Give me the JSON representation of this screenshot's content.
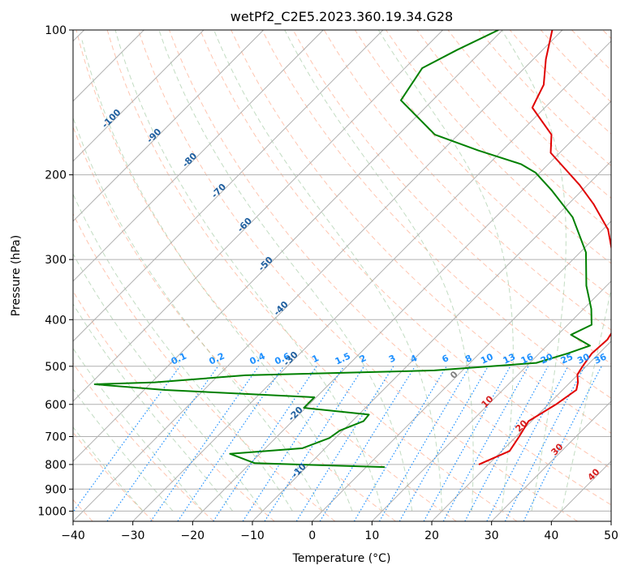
{
  "chart_data": {
    "type": "line",
    "title": "wetPf2_C2E5.2023.360.19.34.G28",
    "xlabel": "Temperature (°C)",
    "ylabel": "Pressure (hPa)",
    "xlim": [
      -40,
      50
    ],
    "ylim": [
      1050,
      100
    ],
    "y_scale": "log",
    "grid": true,
    "x_ticks": [
      "−40",
      "−30",
      "−20",
      "−10",
      "0",
      "10",
      "20",
      "30",
      "40",
      "50"
    ],
    "y_ticks": [
      "100",
      "200",
      "300",
      "400",
      "500",
      "600",
      "700",
      "800",
      "900",
      "1000"
    ],
    "colors": {
      "temperature": "#e00000",
      "dewpoint": "#008000",
      "isotherm_label": "#1f5f9f",
      "mixing_ratio": "#1e90ff",
      "dry_adiabat": "#ff7f50",
      "moist_adiabat": "#90c090",
      "grid": "#b0b0b0",
      "dry_adiabat_label": "#d62020",
      "zero_label": "#808080"
    },
    "isotherm_labels": [
      "-100",
      "-90",
      "-80",
      "-70",
      "-60",
      "-50",
      "-40",
      "-30",
      "-20",
      "-10"
    ],
    "mixing_ratio_labels": [
      "0.1",
      "0.2",
      "0.4",
      "0.6",
      "1",
      "1.5",
      "2",
      "3",
      "4",
      "6",
      "8",
      "10",
      "13",
      "16",
      "20",
      "25",
      "30",
      "36"
    ],
    "adiabat_labels": [
      "0",
      "10",
      "20",
      "30",
      "40"
    ],
    "series": [
      {
        "points": [
          [
            18.4,
            800
          ],
          [
            21.3,
            750
          ],
          [
            20.5,
            700
          ],
          [
            19.5,
            650
          ],
          [
            21.3,
            600
          ],
          [
            22.3,
            560
          ],
          [
            21.3,
            540
          ],
          [
            19.9,
            520
          ],
          [
            19.4,
            500
          ],
          [
            18.8,
            470
          ],
          [
            19.1,
            440
          ],
          [
            18.5,
            420
          ],
          [
            17.2,
            400
          ],
          [
            13.3,
            360
          ],
          [
            8.9,
            320
          ],
          [
            5.4,
            290
          ],
          [
            0.9,
            260
          ],
          [
            -5.8,
            230
          ],
          [
            -11.3,
            210
          ],
          [
            -16.2,
            195
          ],
          [
            -21.5,
            180
          ],
          [
            -24.4,
            165
          ],
          [
            -32.1,
            145
          ],
          [
            -34.0,
            130
          ],
          [
            -37.9,
            115
          ],
          [
            -41.7,
            100
          ]
        ]
      },
      {
        "points": [
          [
            3.1,
            810
          ],
          [
            -19.3,
            795
          ],
          [
            -25.0,
            760
          ],
          [
            -13.8,
            740
          ],
          [
            -11.0,
            705
          ],
          [
            -10.5,
            680
          ],
          [
            -8.1,
            650
          ],
          [
            -8.3,
            630
          ],
          [
            -20.3,
            610
          ],
          [
            -20.3,
            580
          ],
          [
            -46.5,
            560
          ],
          [
            -59.2,
            545
          ],
          [
            -49.5,
            540
          ],
          [
            -35.5,
            522
          ],
          [
            -4.7,
            510
          ],
          [
            11.1,
            492
          ],
          [
            14.8,
            470
          ],
          [
            17.2,
            453
          ],
          [
            12.2,
            430
          ],
          [
            14.0,
            410
          ],
          [
            11.3,
            380
          ],
          [
            6.6,
            340
          ],
          [
            1.0,
            290
          ],
          [
            -7.1,
            245
          ],
          [
            -15.2,
            215
          ],
          [
            -20.7,
            198
          ],
          [
            -24.6,
            190
          ],
          [
            -34.0,
            178
          ],
          [
            -43.9,
            165
          ],
          [
            -55.3,
            140
          ],
          [
            -57.1,
            120
          ],
          [
            -54.3,
            110
          ],
          [
            -50.7,
            100
          ]
        ]
      }
    ]
  }
}
